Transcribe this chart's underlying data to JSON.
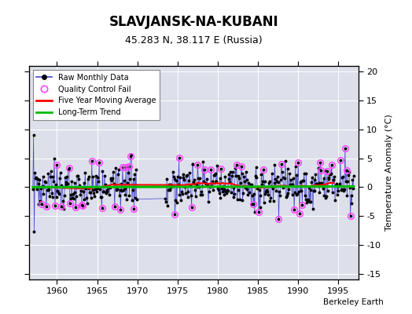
{
  "title": "SLAVJANSK-NA-KUBANI",
  "subtitle": "45.283 N, 38.117 E (Russia)",
  "ylabel": "Temperature Anomaly (°C)",
  "xlabel_note": "Berkeley Earth",
  "xlim": [
    1956.5,
    1997.5
  ],
  "ylim": [
    -16,
    21
  ],
  "yticks": [
    -15,
    -10,
    -5,
    0,
    5,
    10,
    15,
    20
  ],
  "xticks": [
    1960,
    1965,
    1970,
    1975,
    1980,
    1985,
    1990,
    1995
  ],
  "bg_color": "#dde0ea",
  "line_color": "#4444cc",
  "dot_color": "#000000",
  "qc_color": "#ff44ff",
  "ma_color": "#ff0000",
  "trend_color": "#00bb00",
  "trend_intercept": 0.05,
  "trend_slope": 0.003,
  "seed": 99
}
